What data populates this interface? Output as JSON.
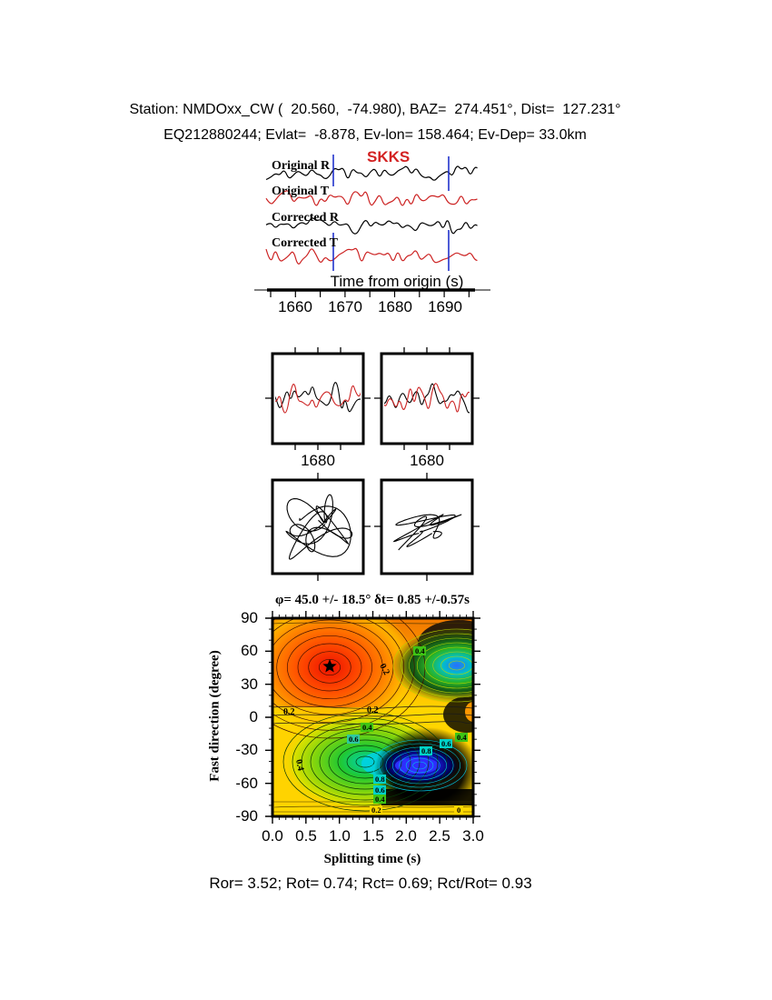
{
  "header": {
    "line1": "Station: NMDOxx_CW (  20.560,  -74.980), BAZ=  274.451°, Dist=  127.231°",
    "line2": "EQ212880244; Evlat=  -8.878, Ev-lon= 158.464; Ev-Dep= 33.0km"
  },
  "waveforms": {
    "phase_label": "SKKS",
    "trace_labels": [
      "Original R",
      "Original T",
      "Corrected R",
      "Corrected T"
    ],
    "axis_label": "Time from origin (s)",
    "tick_labels": [
      "1660",
      "1670",
      "1680",
      "1690"
    ]
  },
  "panels": {
    "left_tick": "1680",
    "right_tick": "1680"
  },
  "contour": {
    "title": "φ= 45.0 +/- 18.5° δt= 0.85 +/-0.57s",
    "xlabel": "Splitting time (s)",
    "ylabel": "Fast direction (degree)",
    "xticks": [
      "0.0",
      "0.5",
      "1.0",
      "1.5",
      "2.0",
      "2.5",
      "3.0"
    ],
    "yticks": [
      "90",
      "60",
      "30",
      "0",
      "-30",
      "-60",
      "-90"
    ],
    "levels": {
      "l0": "0",
      "l02": "0.2",
      "l04": "0.4",
      "l06": "0.6",
      "l08": "0.8"
    }
  },
  "footer": "Ror= 3.52; Rot= 0.74; Rct= 0.69; Rct/Rot= 0.93",
  "colors": {
    "trace_red": "#cc2222",
    "trace_black": "#000000",
    "window_blue": "#2233cc",
    "phase_red": "#d32222",
    "contour_red": "#ee1000",
    "contour_orange": "#ff8800",
    "contour_yellow": "#ffd700",
    "contour_green": "#3ec414",
    "contour_cyan": "#00d2c8",
    "contour_blue": "#2e2eff"
  },
  "chart_data": [
    {
      "type": "line",
      "title": "Rotated seismogram traces",
      "series": [
        {
          "name": "Original R",
          "color": "black"
        },
        {
          "name": "Original T",
          "color": "red"
        },
        {
          "name": "Corrected R",
          "color": "black"
        },
        {
          "name": "Corrected T",
          "color": "red"
        }
      ],
      "xlabel": "Time from origin (s)",
      "xlim": [
        1655,
        1702
      ],
      "xticks": [
        1660,
        1670,
        1680,
        1690
      ],
      "phase": "SKKS",
      "window_markers_s": [
        1668.5,
        1691.5
      ]
    },
    {
      "type": "line",
      "title": "Windowed waveform comparison panels (R vs T overlay)",
      "panels": 2,
      "xticks": [
        1680,
        1680
      ]
    },
    {
      "type": "scatter",
      "title": "Particle motion before (tangled) and after (linearized) correction",
      "panels": 2
    },
    {
      "type": "heatmap",
      "title": "φ= 45.0 +/- 18.5° δt= 0.85 +/-0.57s",
      "xlabel": "Splitting time (s)",
      "ylabel": "Fast direction (degree)",
      "xlim": [
        0,
        3
      ],
      "ylim": [
        -90,
        90
      ],
      "xticks": [
        0.0,
        0.5,
        1.0,
        1.5,
        2.0,
        2.5,
        3.0
      ],
      "yticks": [
        90,
        60,
        30,
        0,
        -30,
        -60,
        -90
      ],
      "contour_levels_labeled": [
        0,
        0.2,
        0.4,
        0.6,
        0.8
      ],
      "best_fit": {
        "dt_s": 0.85,
        "dt_err_s": 0.57,
        "phi_deg": 45.0,
        "phi_err_deg": 18.5,
        "marker": "star"
      },
      "grid": false,
      "legend": "none"
    },
    {
      "type": "table",
      "title": "Quality statistics",
      "categories": [
        "Ror",
        "Rot",
        "Rct",
        "Rct/Rot"
      ],
      "values": [
        3.52,
        0.74,
        0.69,
        0.93
      ]
    }
  ]
}
